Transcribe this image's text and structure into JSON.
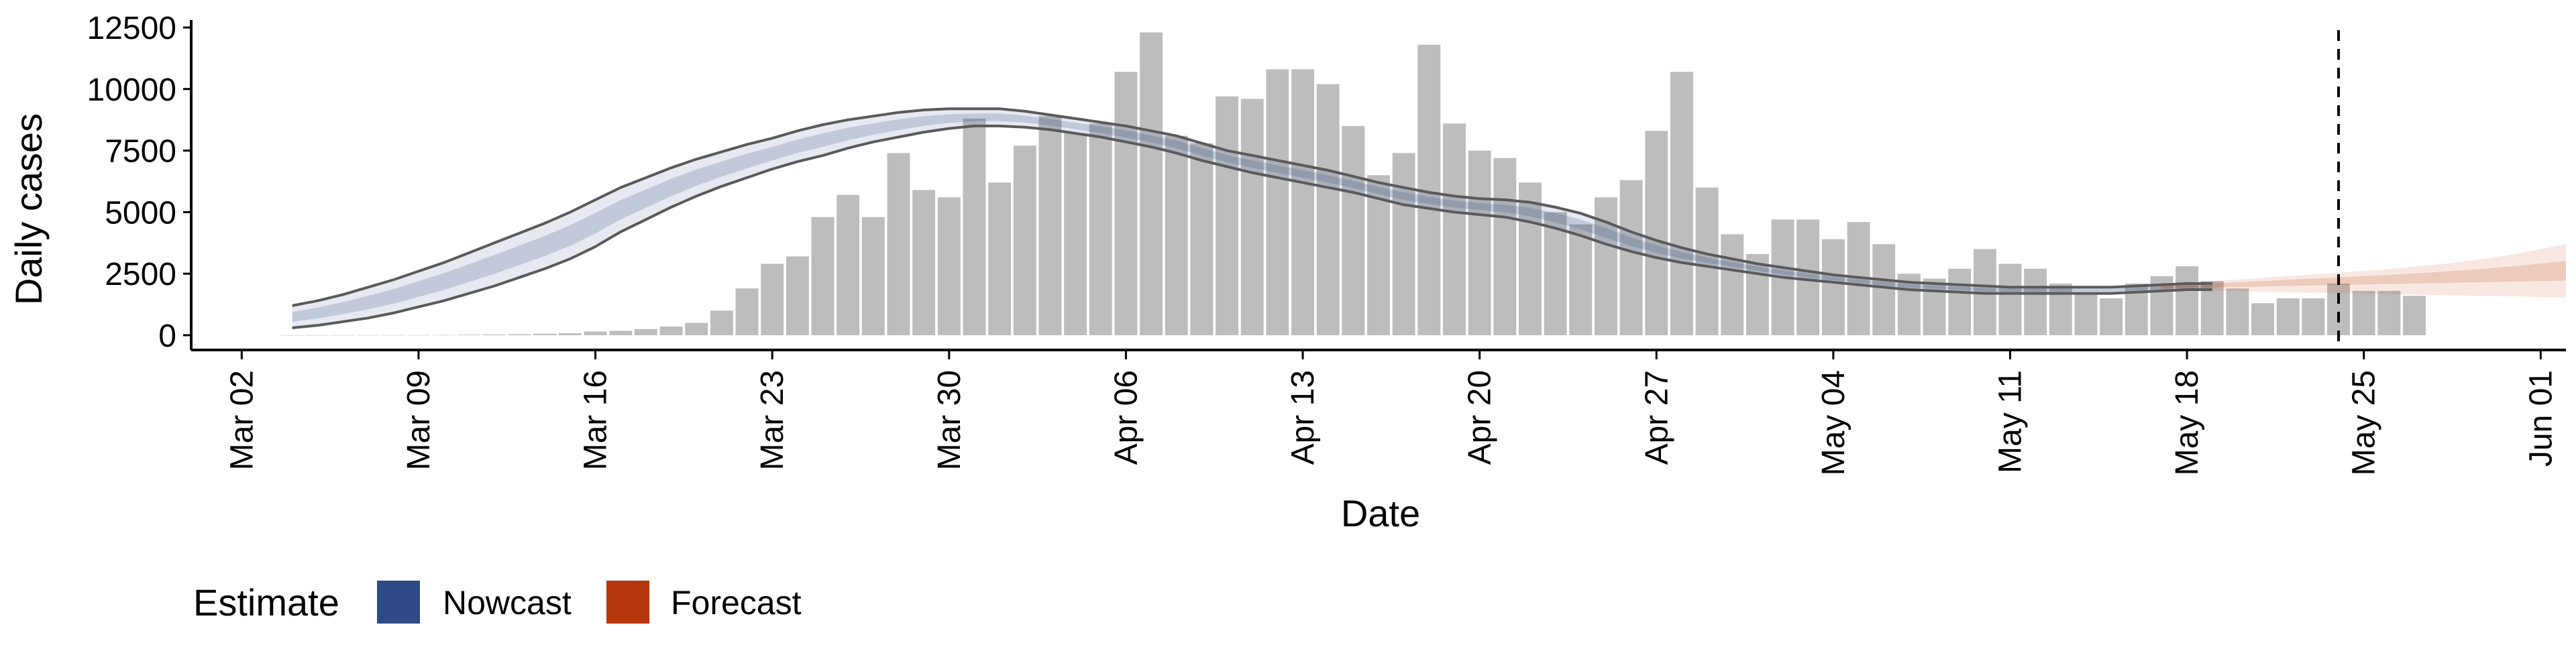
{
  "chart_data": {
    "type": "bar",
    "xlabel": "Date",
    "ylabel": "Daily cases",
    "x_ticks": [
      {
        "date": "2020-03-02",
        "label": "Mar 02"
      },
      {
        "date": "2020-03-09",
        "label": "Mar 09"
      },
      {
        "date": "2020-03-16",
        "label": "Mar 16"
      },
      {
        "date": "2020-03-23",
        "label": "Mar 23"
      },
      {
        "date": "2020-03-30",
        "label": "Mar 30"
      },
      {
        "date": "2020-04-06",
        "label": "Apr 06"
      },
      {
        "date": "2020-04-13",
        "label": "Apr 13"
      },
      {
        "date": "2020-04-20",
        "label": "Apr 20"
      },
      {
        "date": "2020-04-27",
        "label": "Apr 27"
      },
      {
        "date": "2020-05-04",
        "label": "May 04"
      },
      {
        "date": "2020-05-11",
        "label": "May 11"
      },
      {
        "date": "2020-05-18",
        "label": "May 18"
      },
      {
        "date": "2020-05-25",
        "label": "May 25"
      },
      {
        "date": "2020-06-01",
        "label": "Jun 01"
      }
    ],
    "y_ticks": [
      0,
      2500,
      5000,
      7500,
      10000,
      12500
    ],
    "ylim": [
      -600,
      12800
    ],
    "xlim": [
      "2020-02-29",
      "2020-06-02"
    ],
    "grid": false,
    "legend": {
      "title": "Estimate",
      "position": "bottom-left",
      "items": [
        {
          "name": "Nowcast",
          "color": "#2E4A87"
        },
        {
          "name": "Forecast",
          "color": "#B5360A"
        }
      ]
    },
    "bar_color": "#BDBDBD",
    "nowcast_band_color": "#2E4A87",
    "forecast_band_color": "#C2410C",
    "median_line_color": "#5A5A5A",
    "vline": {
      "date": "2020-05-24",
      "style": "dashed"
    },
    "reported_cases": {
      "start_date": "2020-03-04",
      "values": [
        2,
        2,
        3,
        5,
        5,
        5,
        10,
        20,
        30,
        40,
        60,
        80,
        150,
        180,
        250,
        350,
        500,
        1000,
        1900,
        2900,
        3200,
        4800,
        5700,
        4800,
        7400,
        5900,
        5600,
        8800,
        6200,
        7700,
        8900,
        8200,
        8600,
        10700,
        12300,
        8100,
        7800,
        9700,
        9600,
        10800,
        10800,
        10200,
        8500,
        6500,
        7400,
        11800,
        8600,
        7500,
        7200,
        6200,
        5000,
        4500,
        5600,
        6300,
        8300,
        10700,
        6000,
        4100,
        3300,
        4700,
        4700,
        3900,
        4600,
        3700,
        2500,
        2300,
        2700,
        3500,
        2900,
        2700,
        2100,
        1700,
        1500,
        2100,
        2400,
        2800,
        2200,
        1900,
        1300,
        1500,
        1500,
        2100,
        1800,
        1800,
        1600
      ]
    },
    "nowcast": {
      "start_date": "2020-03-04",
      "upper": [
        1200,
        1400,
        1650,
        1950,
        2250,
        2600,
        2950,
        3350,
        3750,
        4150,
        4550,
        5000,
        5500,
        6000,
        6400,
        6800,
        7150,
        7450,
        7750,
        8000,
        8300,
        8550,
        8750,
        8900,
        9050,
        9150,
        9200,
        9200,
        9200,
        9100,
        8950,
        8800,
        8650,
        8500,
        8300,
        8100,
        7800,
        7500,
        7300,
        7100,
        6900,
        6700,
        6450,
        6200,
        6000,
        5800,
        5650,
        5550,
        5500,
        5400,
        5200,
        4950,
        4600,
        4200,
        3850,
        3550,
        3300,
        3100,
        2900,
        2750,
        2600,
        2450,
        2350,
        2250,
        2150,
        2100,
        2050,
        2000,
        1950,
        1950,
        1950,
        1950,
        1950,
        2000,
        2050,
        2100,
        2100
      ],
      "lower": [
        300,
        400,
        550,
        700,
        900,
        1150,
        1400,
        1700,
        2000,
        2350,
        2700,
        3100,
        3600,
        4200,
        4700,
        5200,
        5650,
        6050,
        6400,
        6750,
        7050,
        7300,
        7600,
        7850,
        8050,
        8250,
        8400,
        8500,
        8500,
        8450,
        8350,
        8200,
        8050,
        7850,
        7650,
        7400,
        7100,
        6850,
        6600,
        6400,
        6200,
        6000,
        5800,
        5550,
        5300,
        5150,
        5000,
        4900,
        4800,
        4600,
        4350,
        4050,
        3700,
        3400,
        3150,
        2950,
        2800,
        2650,
        2500,
        2350,
        2250,
        2150,
        2050,
        1950,
        1850,
        1800,
        1750,
        1700,
        1700,
        1700,
        1700,
        1700,
        1700,
        1750,
        1800,
        1850,
        1850
      ]
    },
    "forecast": {
      "start_date": "2020-05-17",
      "outer_upper": [
        2050,
        2120,
        2190,
        2260,
        2330,
        2400,
        2470,
        2540,
        2610,
        2690,
        2780,
        2880,
        3000,
        3140,
        3300,
        3500,
        3700
      ],
      "outer_lower": [
        1850,
        1830,
        1810,
        1790,
        1770,
        1750,
        1730,
        1710,
        1690,
        1670,
        1650,
        1630,
        1610,
        1590,
        1570,
        1550,
        1530
      ],
      "inner_upper": [
        2010,
        2050,
        2100,
        2150,
        2200,
        2250,
        2300,
        2350,
        2400,
        2450,
        2510,
        2570,
        2640,
        2720,
        2810,
        2910,
        3020
      ],
      "inner_lower": [
        1900,
        1920,
        1940,
        1960,
        1980,
        2000,
        2020,
        2040,
        2060,
        2080,
        2100,
        2120,
        2140,
        2160,
        2180,
        2200,
        2220
      ]
    }
  }
}
